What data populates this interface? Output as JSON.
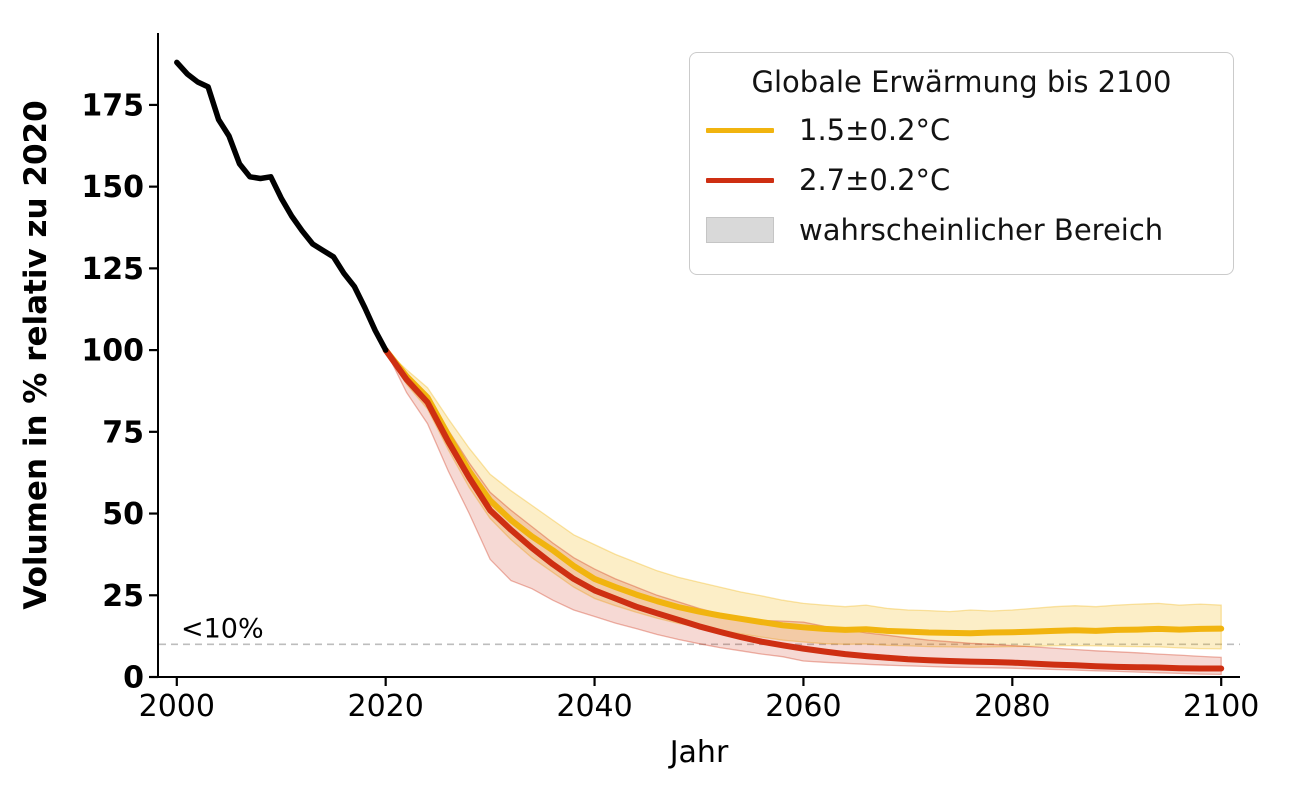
{
  "chart_data": {
    "type": "line",
    "title": "",
    "xlabel": "Jahr",
    "ylabel": "Volumen in % relativ zu 2020",
    "xlim": [
      1998.2,
      2101.8
    ],
    "ylim": [
      0,
      197
    ],
    "x_ticks": [
      2000,
      2020,
      2040,
      2060,
      2080,
      2100
    ],
    "y_ticks": [
      0,
      25,
      50,
      75,
      100,
      125,
      150,
      175
    ],
    "grid": false,
    "legend": {
      "position": "top-right",
      "title": "Globale Erwärmung bis 2100",
      "items": [
        {
          "label": "1.5±0.2°C",
          "color": "#F1B40F",
          "swatch": "line"
        },
        {
          "label": "2.7±0.2°C",
          "color": "#CE2F12",
          "swatch": "line"
        },
        {
          "label": "wahrscheinlicher Bereich",
          "color": "#D9D9D9",
          "swatch": "patch"
        }
      ]
    },
    "threshold": {
      "y": 10,
      "label": "<10%",
      "line_color": "#bdbdbd",
      "label_color": "#a3a3a3",
      "style": "dashed"
    },
    "series": [
      {
        "id": "history",
        "color": "#000000",
        "x": [
          2000,
          2001,
          2002,
          2003,
          2004,
          2005,
          2006,
          2007,
          2008,
          2009,
          2010,
          2011,
          2012,
          2013,
          2014,
          2015,
          2016,
          2017,
          2018,
          2019,
          2020
        ],
        "y": [
          188,
          184.5,
          182,
          180.5,
          170.5,
          165.5,
          157,
          153,
          152.5,
          153,
          146.5,
          141,
          136.5,
          132.5,
          130.5,
          128.5,
          123.5,
          119.5,
          113,
          106,
          100
        ]
      },
      {
        "id": "warming-1-5C",
        "color": "#F1B40F",
        "band_fill_opacity": 0.23,
        "x": [
          2020,
          2022,
          2024,
          2026,
          2028,
          2030,
          2032,
          2034,
          2036,
          2038,
          2040,
          2042,
          2044,
          2046,
          2048,
          2050,
          2052,
          2054,
          2056,
          2058,
          2060,
          2062,
          2064,
          2066,
          2068,
          2070,
          2072,
          2074,
          2076,
          2078,
          2080,
          2082,
          2084,
          2086,
          2088,
          2090,
          2092,
          2094,
          2096,
          2098,
          2100
        ],
        "y": [
          100,
          92,
          85.5,
          74,
          63,
          54,
          48,
          43,
          38.8,
          34,
          30,
          27.5,
          25.2,
          23.2,
          21.4,
          20,
          18.8,
          17.8,
          16.8,
          15.8,
          15.2,
          14.7,
          14.4,
          14.6,
          14.1,
          13.9,
          13.6,
          13.5,
          13.4,
          13.6,
          13.7,
          13.9,
          14.1,
          14.3,
          14.1,
          14.4,
          14.5,
          14.7,
          14.5,
          14.7,
          14.8
        ],
        "band_upper": [
          100,
          94,
          88.5,
          79,
          70,
          62,
          57,
          52.5,
          48,
          43.5,
          40.5,
          37.5,
          35,
          32.5,
          30.5,
          29,
          27.5,
          26,
          24.8,
          23.5,
          22.5,
          22,
          21.5,
          22,
          21,
          20.5,
          20.3,
          20,
          20.5,
          20.2,
          20.5,
          21,
          21.5,
          21.8,
          21.5,
          22,
          22.3,
          22.5,
          22,
          22.3,
          22
        ],
        "band_lower": [
          100,
          89.5,
          82,
          69.5,
          58,
          48.5,
          42,
          36.5,
          32,
          27.5,
          24,
          21.8,
          19.8,
          18,
          16.4,
          15.2,
          14.2,
          13.2,
          12.2,
          11.3,
          10.7,
          10.2,
          10,
          10.1,
          9.7,
          9.5,
          9.3,
          9.2,
          9.1,
          9.2,
          9.3,
          9.4,
          9.5,
          9.6,
          9.5,
          9.4,
          9.3,
          9.2,
          8.9,
          8.7,
          8.6
        ]
      },
      {
        "id": "warming-2-7C",
        "color": "#CE2F12",
        "band_fill_opacity": 0.18,
        "x": [
          2020,
          2022,
          2024,
          2026,
          2028,
          2030,
          2032,
          2034,
          2036,
          2038,
          2040,
          2042,
          2044,
          2046,
          2048,
          2050,
          2052,
          2054,
          2056,
          2058,
          2060,
          2062,
          2064,
          2066,
          2068,
          2070,
          2072,
          2074,
          2076,
          2078,
          2080,
          2082,
          2084,
          2086,
          2088,
          2090,
          2092,
          2094,
          2096,
          2098,
          2100
        ],
        "y": [
          100,
          91,
          84,
          72,
          61,
          51,
          45,
          39.5,
          34.5,
          30,
          26.5,
          24,
          21.5,
          19.5,
          17.5,
          15.5,
          13.8,
          12.2,
          10.8,
          9.7,
          8.7,
          7.8,
          7,
          6.4,
          5.9,
          5.4,
          5.1,
          4.9,
          4.7,
          4.6,
          4.4,
          4.1,
          3.8,
          3.6,
          3.3,
          3.1,
          3,
          2.9,
          2.7,
          2.6,
          2.6
        ],
        "band_upper": [
          100,
          92.5,
          86.5,
          75.5,
          65.5,
          56.5,
          51,
          46,
          41,
          36.5,
          33,
          30,
          27.5,
          25,
          23,
          21,
          19.3,
          17.8,
          17.3,
          17.1,
          16.8,
          15.5,
          14.5,
          13.5,
          12.8,
          12,
          11.3,
          10.8,
          10.3,
          10,
          9.6,
          9.2,
          8.8,
          8.4,
          8,
          7.7,
          7.4,
          7,
          6.7,
          6.3,
          6
        ],
        "band_lower": [
          100,
          87,
          77.5,
          63,
          50,
          36,
          29.5,
          27,
          23.5,
          20.5,
          18.5,
          16.5,
          14.8,
          13,
          11.5,
          10.2,
          9,
          8,
          7,
          6.2,
          4.9,
          4.5,
          4.2,
          3.9,
          3.6,
          3.4,
          3.2,
          3,
          2.9,
          2.8,
          2.7,
          2.5,
          2.3,
          2.1,
          1.9,
          1.7,
          1.5,
          1.3,
          1.1,
          0.9,
          0.8
        ]
      }
    ]
  }
}
